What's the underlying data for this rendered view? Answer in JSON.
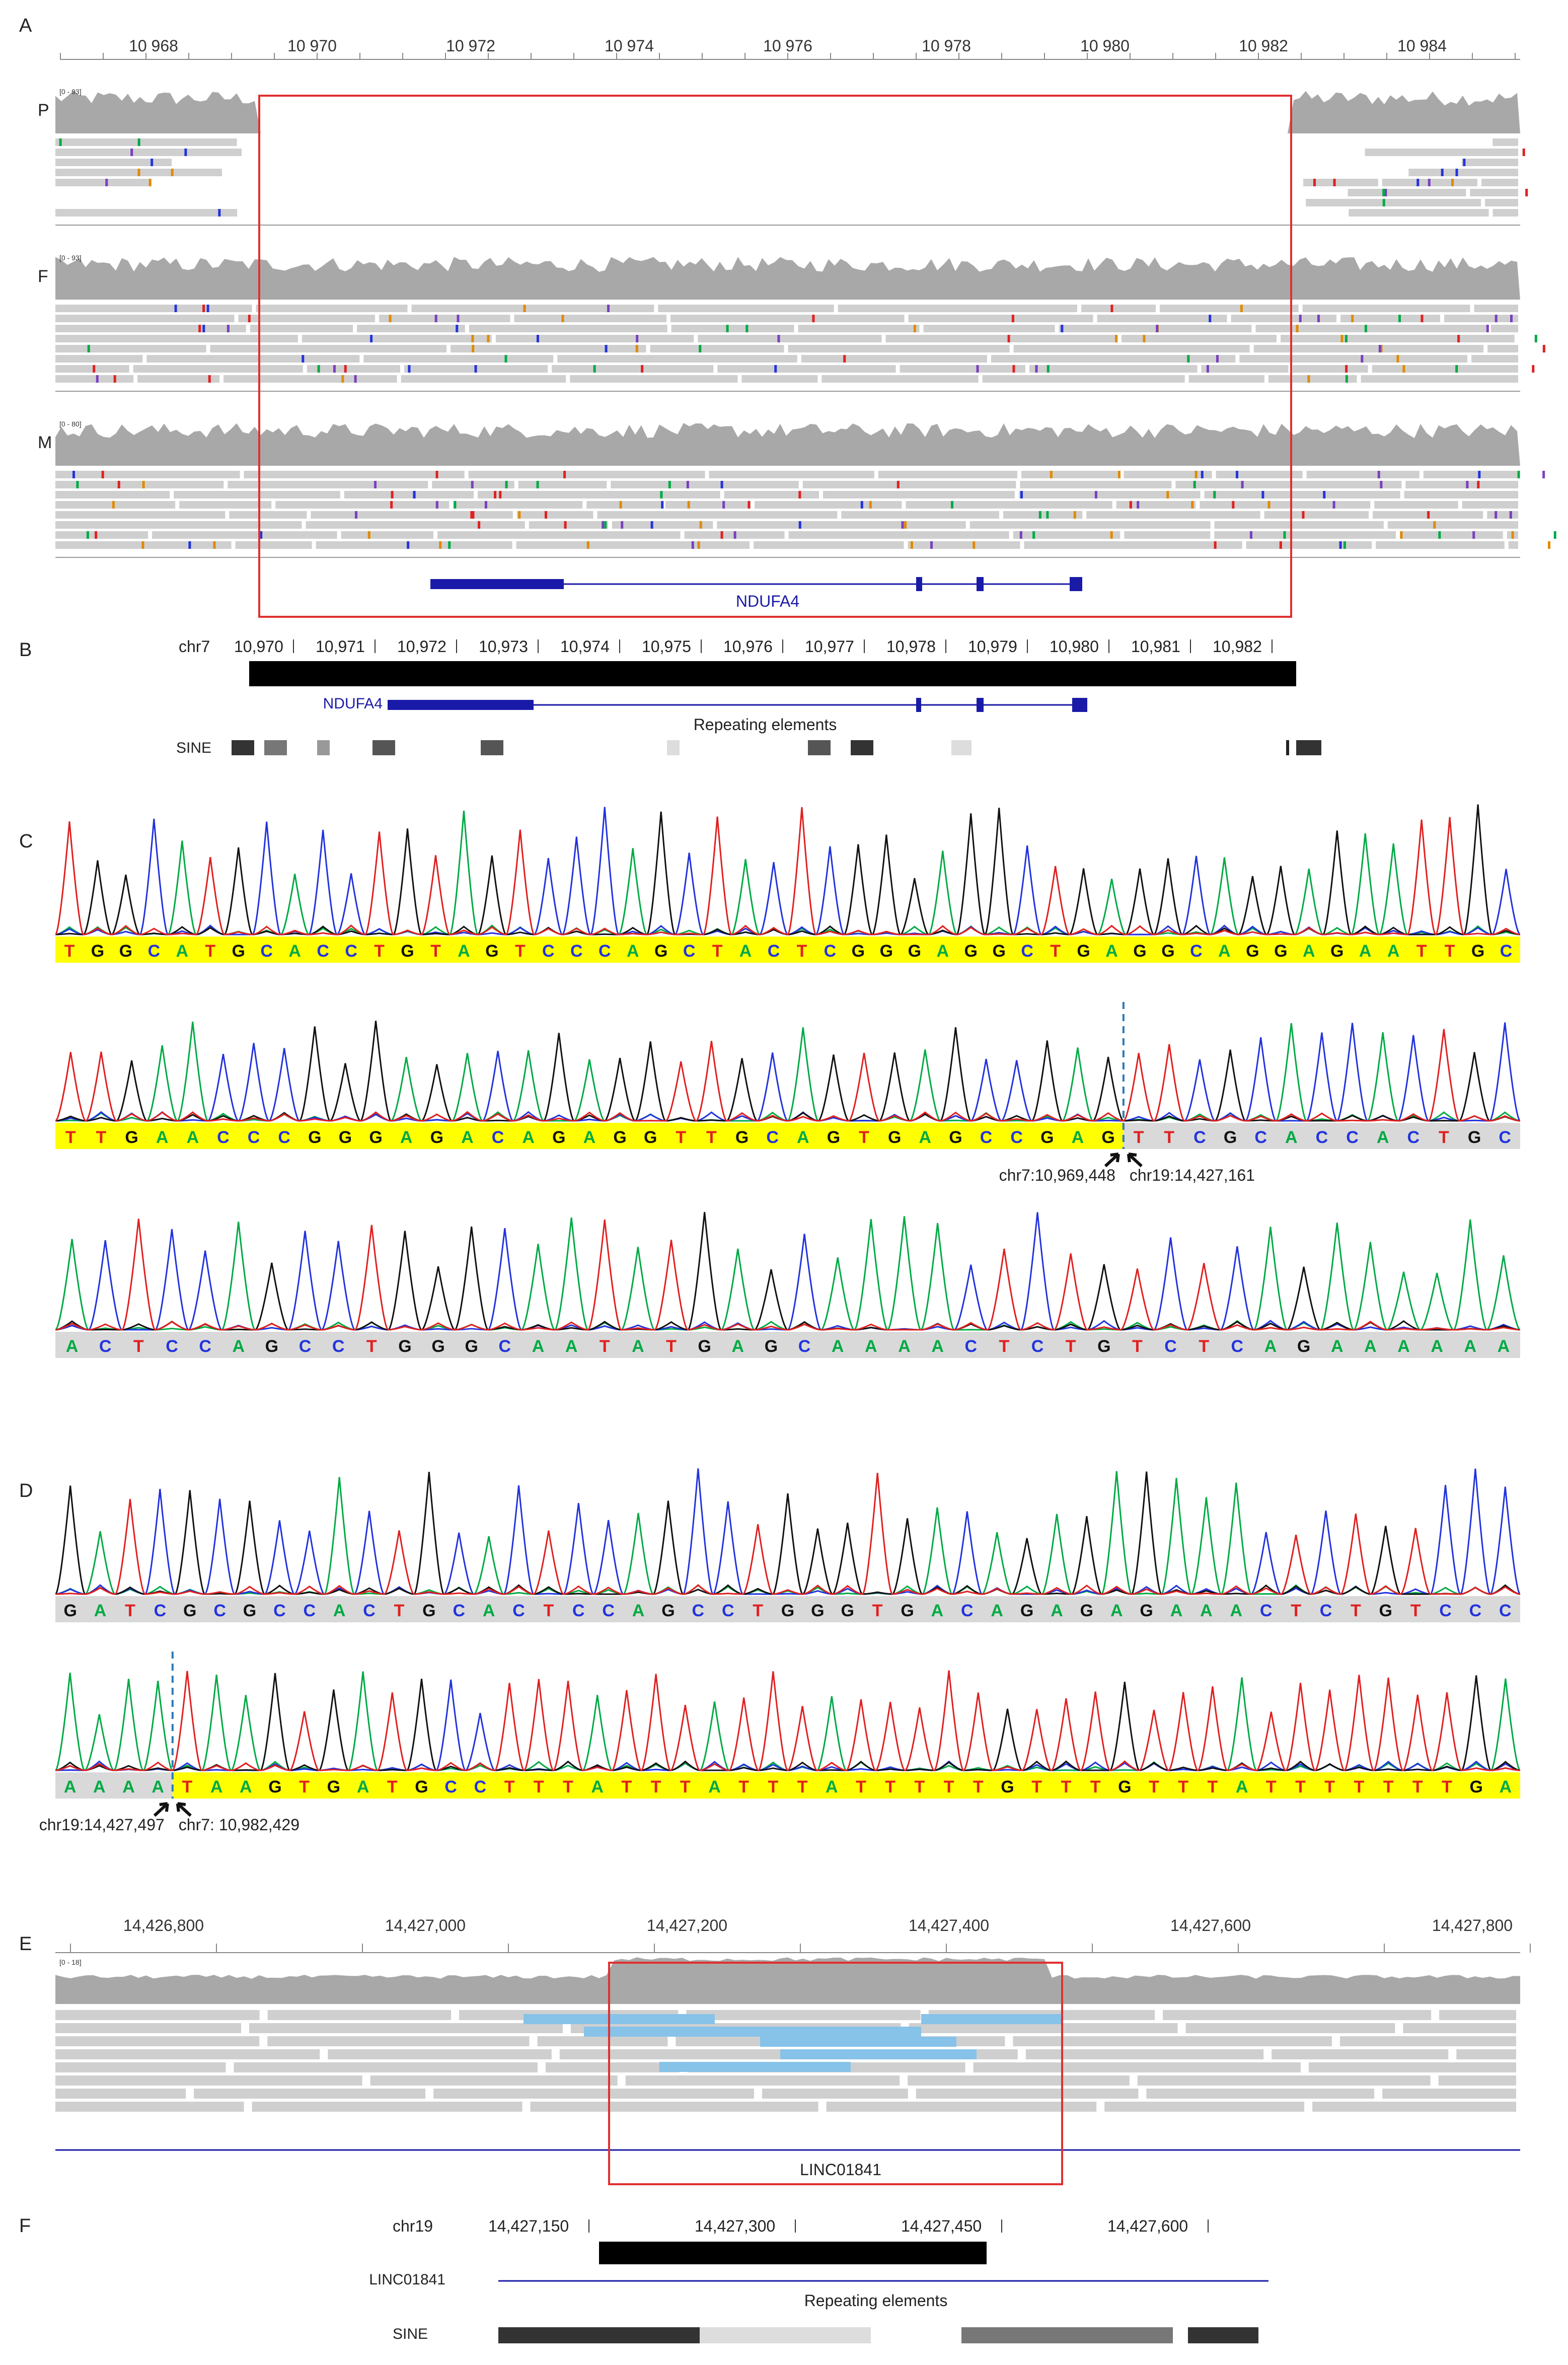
{
  "panels": {
    "A": {
      "letter": "A",
      "ticks": [
        "10 968",
        "10 970",
        "10 972",
        "10 974",
        "10 976",
        "10 978",
        "10 980",
        "10 982",
        "10 984"
      ],
      "tracks": [
        "P",
        "F",
        "M"
      ],
      "ranges": [
        "[0 - 93]",
        "[0 - 93]",
        "[0 - 80]"
      ],
      "gene": "NDUFA4"
    },
    "B": {
      "letter": "B",
      "chrom": "chr7",
      "ticks": [
        "10,970",
        "10,971",
        "10,972",
        "10,973",
        "10,974",
        "10,975",
        "10,976",
        "10,977",
        "10,978",
        "10,979",
        "10,980",
        "10,981",
        "10,982"
      ],
      "gene": "NDUFA4",
      "repeat_label": "Repeating elements",
      "sine_label": "SINE"
    },
    "C": {
      "letter": "C",
      "seq1": "TGGCATGCACCTGTAGTCCCAGCTACTCGGGAGGCTGAGGCAGGAGAATTGC",
      "seq2a": "TTGAACCCGGGAGACAGAGGTTGCAGTGAGCCGAG",
      "seq2b": "TTCGCACCACTGC",
      "junction_left": "chr7:10,969,448",
      "junction_right": "chr19:14,427,161",
      "seq3": "ACTCCAGCCTGGGCAATATGAGCAAAACTCTGTCTCAGAAAAAA"
    },
    "D": {
      "letter": "D",
      "seq1": "GATCGCGCCACTGCACTCCAGCCTGGGTGACAGAGAGAAACTCTGTCCC",
      "seq2a": "AAAA",
      "seq2b": "TAAGTGATGCCTTTATTTATTTATTTTTGTTTGTTTATTTTTTTGA",
      "junction_left": "chr19:14,427,497",
      "junction_right": "chr7: 10,982,429"
    },
    "E": {
      "letter": "E",
      "ticks": [
        "14,426,800",
        "14,427,000",
        "14,427,200",
        "14,427,400",
        "14,427,600",
        "14,427,800"
      ],
      "range": "[0 - 18]",
      "gene": "LINC01841"
    },
    "F": {
      "letter": "F",
      "chrom": "chr19",
      "ticks": [
        "14,427,150",
        "14,427,300",
        "14,427,450",
        "14,427,600"
      ],
      "gene": "LINC01841",
      "repeat_label": "Repeating elements",
      "sine_label": "SINE"
    }
  },
  "colors": {
    "A": "#00aa44",
    "C": "#2233dd",
    "G": "#111111",
    "T": "#e02020",
    "highlight": "#ffff00",
    "gray_bar": "#d9d9d9",
    "red_box": "#e03030",
    "gene_blue": "#1a1aa8",
    "read_blue": "#87c2e8"
  }
}
